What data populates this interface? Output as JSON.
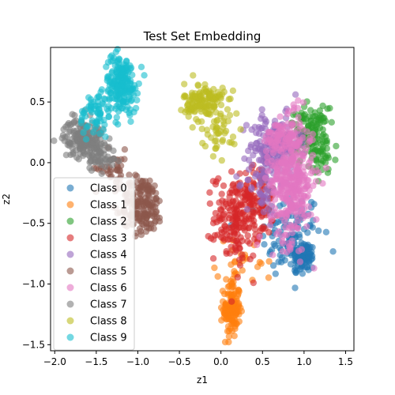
{
  "chart_data": {
    "type": "scatter",
    "title": "Test Set Embedding",
    "xlabel": "z1",
    "ylabel": "z2",
    "xlim": [
      -2.05,
      1.6
    ],
    "ylim": [
      -1.55,
      0.95
    ],
    "xticks": [
      -2.0,
      -1.5,
      -1.0,
      -0.5,
      0.0,
      0.5,
      1.0,
      1.5
    ],
    "yticks": [
      -1.5,
      -1.0,
      -0.5,
      0.0,
      0.5
    ],
    "grid": false,
    "legend_position": "lower-left",
    "series": [
      {
        "name": "Class 0",
        "color": "#1f77b4",
        "clusters": [
          {
            "cx": 0.85,
            "cy": -0.6,
            "sx": 0.18,
            "sy": 0.18,
            "n": 120
          },
          {
            "cx": 1.0,
            "cy": -0.78,
            "sx": 0.07,
            "sy": 0.06,
            "n": 70
          }
        ]
      },
      {
        "name": "Class 1",
        "color": "#ff7f0e",
        "clusters": [
          {
            "cx": 0.13,
            "cy": -1.2,
            "sx": 0.05,
            "sy": 0.12,
            "n": 130
          },
          {
            "cx": 0.3,
            "cy": -0.82,
            "sx": 0.18,
            "sy": 0.1,
            "n": 25
          }
        ]
      },
      {
        "name": "Class 2",
        "color": "#2ca02c",
        "clusters": [
          {
            "cx": 1.05,
            "cy": 0.25,
            "sx": 0.12,
            "sy": 0.1,
            "n": 120
          },
          {
            "cx": 1.2,
            "cy": 0.05,
            "sx": 0.1,
            "sy": 0.12,
            "n": 40
          }
        ]
      },
      {
        "name": "Class 3",
        "color": "#d62728",
        "clusters": [
          {
            "cx": 0.2,
            "cy": -0.45,
            "sx": 0.14,
            "sy": 0.18,
            "n": 200
          },
          {
            "cx": 0.45,
            "cy": -0.3,
            "sx": 0.12,
            "sy": 0.15,
            "n": 60
          }
        ]
      },
      {
        "name": "Class 4",
        "color": "#9467bd",
        "clusters": [
          {
            "cx": 0.65,
            "cy": 0.15,
            "sx": 0.15,
            "sy": 0.12,
            "n": 160
          },
          {
            "cx": 0.5,
            "cy": -0.15,
            "sx": 0.1,
            "sy": 0.15,
            "n": 60
          }
        ]
      },
      {
        "name": "Class 5",
        "color": "#8c564b",
        "clusters": [
          {
            "cx": -0.95,
            "cy": -0.35,
            "sx": 0.13,
            "sy": 0.12,
            "n": 180
          },
          {
            "cx": -1.3,
            "cy": -0.05,
            "sx": 0.1,
            "sy": 0.08,
            "n": 40
          }
        ]
      },
      {
        "name": "Class 6",
        "color": "#e377c2",
        "clusters": [
          {
            "cx": 0.85,
            "cy": -0.15,
            "sx": 0.13,
            "sy": 0.25,
            "n": 350
          },
          {
            "cx": 0.75,
            "cy": 0.2,
            "sx": 0.12,
            "sy": 0.07,
            "n": 70
          }
        ]
      },
      {
        "name": "Class 7",
        "color": "#7f7f7f",
        "clusters": [
          {
            "cx": -1.65,
            "cy": 0.2,
            "sx": 0.12,
            "sy": 0.08,
            "n": 180
          },
          {
            "cx": -1.45,
            "cy": 0.05,
            "sx": 0.1,
            "sy": 0.06,
            "n": 40
          }
        ]
      },
      {
        "name": "Class 8",
        "color": "#bcbd22",
        "clusters": [
          {
            "cx": -0.2,
            "cy": 0.5,
            "sx": 0.12,
            "sy": 0.08,
            "n": 140
          },
          {
            "cx": 0.0,
            "cy": 0.25,
            "sx": 0.12,
            "sy": 0.08,
            "n": 40
          }
        ]
      },
      {
        "name": "Class 9",
        "color": "#17becf",
        "clusters": [
          {
            "cx": -1.2,
            "cy": 0.65,
            "sx": 0.1,
            "sy": 0.12,
            "n": 200
          },
          {
            "cx": -1.5,
            "cy": 0.4,
            "sx": 0.1,
            "sy": 0.1,
            "n": 60
          }
        ]
      }
    ]
  }
}
